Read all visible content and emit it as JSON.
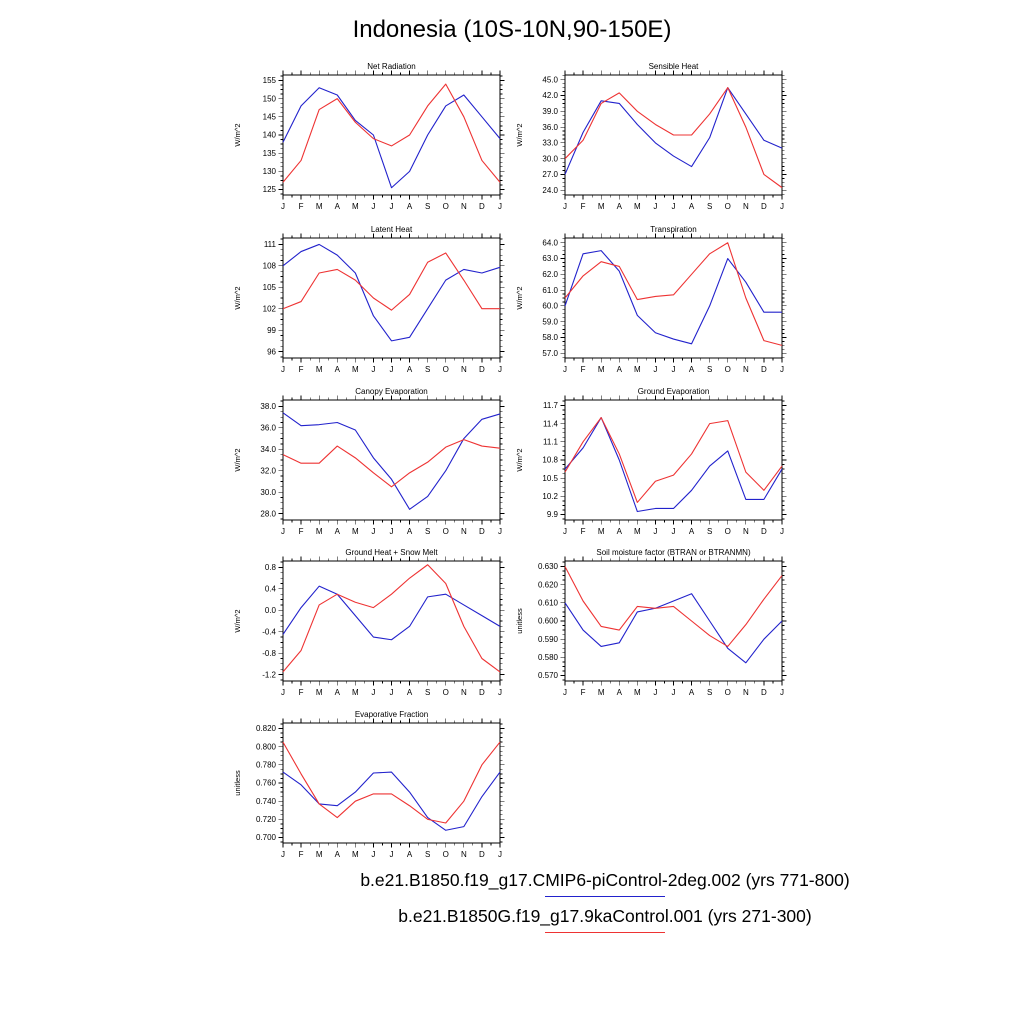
{
  "page": {
    "title": "Indonesia (10S-10N,90-150E)",
    "legend": [
      {
        "label": "b.e21.B1850.f19_g17.CMIP6-piControl-2deg.002 (yrs 771-800)",
        "color": "#2222cc"
      },
      {
        "label": "b.e21.B1850G.f19_g17.9kaControl.001 (yrs 271-300)",
        "color": "#ee3333"
      }
    ]
  },
  "series_colors": {
    "blue": "#2222cc",
    "red": "#ee3333"
  },
  "x_categories": [
    "J",
    "F",
    "M",
    "A",
    "M",
    "J",
    "J",
    "A",
    "S",
    "O",
    "N",
    "D",
    "J"
  ],
  "chart_data": [
    {
      "type": "line",
      "title": "Net Radiation",
      "ylabel": "W/m^2",
      "ylim": [
        125,
        155
      ],
      "ytick_step": 5,
      "ydecimals": 0,
      "series": [
        {
          "name": "b.e21.B1850.f19_g17.CMIP6-piControl-2deg.002",
          "color": "blue",
          "values": [
            138,
            148,
            153,
            151,
            144,
            140,
            125.5,
            130,
            140,
            148,
            151,
            145,
            139
          ]
        },
        {
          "name": "b.e21.B1850G.f19_g17.9kaControl.001",
          "color": "red",
          "values": [
            127,
            133,
            147,
            150,
            143.5,
            139,
            137,
            140,
            148,
            154,
            145,
            133,
            127
          ]
        }
      ]
    },
    {
      "type": "line",
      "title": "Sensible Heat",
      "ylabel": "W/m^2",
      "ylim": [
        24,
        45
      ],
      "ytick_step": 3,
      "ydecimals": 1,
      "series": [
        {
          "name": "b.e21.B1850.f19_g17.CMIP6-piControl-2deg.002",
          "color": "blue",
          "values": [
            27,
            35,
            41,
            40.5,
            36.5,
            33,
            30.5,
            28.5,
            34,
            43.5,
            38.5,
            33.5,
            32
          ]
        },
        {
          "name": "b.e21.B1850G.f19_g17.9kaControl.001",
          "color": "red",
          "values": [
            30,
            33.5,
            40.5,
            42.5,
            39,
            36.5,
            34.5,
            34.5,
            38.5,
            43.5,
            36,
            27,
            24.5
          ]
        }
      ]
    },
    {
      "type": "line",
      "title": "Latent Heat",
      "ylabel": "W/m^2",
      "ylim": [
        96,
        111
      ],
      "ytick_step": 3,
      "ydecimals": 0,
      "series": [
        {
          "name": "b.e21.B1850.f19_g17.CMIP6-piControl-2deg.002",
          "color": "blue",
          "values": [
            108,
            110,
            111,
            109.5,
            107,
            101,
            97.5,
            98,
            102,
            106,
            107.5,
            107,
            107.8
          ]
        },
        {
          "name": "b.e21.B1850G.f19_g17.9kaControl.001",
          "color": "red",
          "values": [
            102,
            103,
            107,
            107.5,
            106,
            103.5,
            101.8,
            104,
            108.5,
            109.8,
            106,
            102,
            102
          ]
        }
      ]
    },
    {
      "type": "line",
      "title": "Transpiration",
      "ylabel": "W/m^2",
      "ylim": [
        57,
        64
      ],
      "ytick_step": 1,
      "ydecimals": 1,
      "series": [
        {
          "name": "b.e21.B1850.f19_g17.CMIP6-piControl-2deg.002",
          "color": "blue",
          "values": [
            60,
            63.3,
            63.5,
            62.2,
            59.4,
            58.3,
            57.9,
            57.6,
            60,
            63,
            61.5,
            59.6,
            59.6
          ]
        },
        {
          "name": "b.e21.B1850G.f19_g17.9kaControl.001",
          "color": "red",
          "values": [
            60.5,
            61.9,
            62.8,
            62.5,
            60.4,
            60.6,
            60.7,
            62,
            63.3,
            64,
            60.5,
            57.8,
            57.5
          ]
        }
      ]
    },
    {
      "type": "line",
      "title": "Canopy Evaporation",
      "ylabel": "W/m^2",
      "ylim": [
        28,
        38
      ],
      "ytick_step": 2,
      "ydecimals": 1,
      "series": [
        {
          "name": "b.e21.B1850.f19_g17.CMIP6-piControl-2deg.002",
          "color": "blue",
          "values": [
            37.4,
            36.2,
            36.3,
            36.5,
            35.8,
            33.2,
            31.2,
            28.4,
            29.6,
            32,
            35,
            36.8,
            37.3
          ]
        },
        {
          "name": "b.e21.B1850G.f19_g17.9kaControl.001",
          "color": "red",
          "values": [
            33.5,
            32.7,
            32.7,
            34.3,
            33.2,
            31.8,
            30.5,
            31.8,
            32.8,
            34.2,
            34.9,
            34.3,
            34.1
          ]
        }
      ]
    },
    {
      "type": "line",
      "title": "Ground Evaporation",
      "ylabel": "W/m^2",
      "ylim": [
        9.9,
        11.7
      ],
      "ytick_step": 0.3,
      "ydecimals": 1,
      "series": [
        {
          "name": "b.e21.B1850.f19_g17.CMIP6-piControl-2deg.002",
          "color": "blue",
          "values": [
            10.65,
            11.0,
            11.5,
            10.8,
            9.95,
            10.0,
            10.0,
            10.3,
            10.7,
            10.95,
            10.15,
            10.15,
            10.65
          ]
        },
        {
          "name": "b.e21.B1850G.f19_g17.9kaControl.001",
          "color": "red",
          "values": [
            10.6,
            11.1,
            11.5,
            10.9,
            10.1,
            10.45,
            10.55,
            10.9,
            11.4,
            11.45,
            10.6,
            10.3,
            10.7
          ]
        }
      ]
    },
    {
      "type": "line",
      "title": "Ground Heat + Snow Melt",
      "ylabel": "W/m^2",
      "ylim": [
        -1.2,
        0.8
      ],
      "ytick_step": 0.4,
      "ydecimals": 1,
      "series": [
        {
          "name": "b.e21.B1850.f19_g17.CMIP6-piControl-2deg.002",
          "color": "blue",
          "values": [
            -0.45,
            0.05,
            0.45,
            0.3,
            -0.1,
            -0.5,
            -0.55,
            -0.3,
            0.25,
            0.3,
            0.1,
            -0.1,
            -0.3
          ]
        },
        {
          "name": "b.e21.B1850G.f19_g17.9kaControl.001",
          "color": "red",
          "values": [
            -1.15,
            -0.75,
            0.1,
            0.3,
            0.15,
            0.05,
            0.3,
            0.6,
            0.85,
            0.5,
            -0.3,
            -0.9,
            -1.15
          ]
        }
      ]
    },
    {
      "type": "line",
      "title": "Soil moisture factor (BTRAN or BTRANMN)",
      "ylabel": "unitless",
      "ylim": [
        0.57,
        0.63
      ],
      "ytick_step": 0.01,
      "ydecimals": 3,
      "series": [
        {
          "name": "b.e21.B1850.f19_g17.CMIP6-piControl-2deg.002",
          "color": "blue",
          "values": [
            0.61,
            0.595,
            0.586,
            0.588,
            0.605,
            0.607,
            0.611,
            0.615,
            0.6,
            0.585,
            0.577,
            0.59,
            0.6
          ]
        },
        {
          "name": "b.e21.B1850G.f19_g17.9kaControl.001",
          "color": "red",
          "values": [
            0.63,
            0.611,
            0.597,
            0.595,
            0.608,
            0.607,
            0.608,
            0.6,
            0.592,
            0.586,
            0.598,
            0.612,
            0.625
          ]
        }
      ]
    },
    {
      "type": "line",
      "title": "Evaporative Fraction",
      "ylabel": "unitless",
      "ylim": [
        0.7,
        0.82
      ],
      "ytick_step": 0.02,
      "ydecimals": 3,
      "series": [
        {
          "name": "b.e21.B1850.f19_g17.CMIP6-piControl-2deg.002",
          "color": "blue",
          "values": [
            0.772,
            0.758,
            0.737,
            0.735,
            0.75,
            0.771,
            0.772,
            0.75,
            0.722,
            0.708,
            0.712,
            0.745,
            0.772
          ]
        },
        {
          "name": "b.e21.B1850G.f19_g17.9kaControl.001",
          "color": "red",
          "values": [
            0.805,
            0.77,
            0.737,
            0.722,
            0.74,
            0.748,
            0.748,
            0.735,
            0.72,
            0.716,
            0.74,
            0.78,
            0.805
          ]
        }
      ]
    }
  ]
}
